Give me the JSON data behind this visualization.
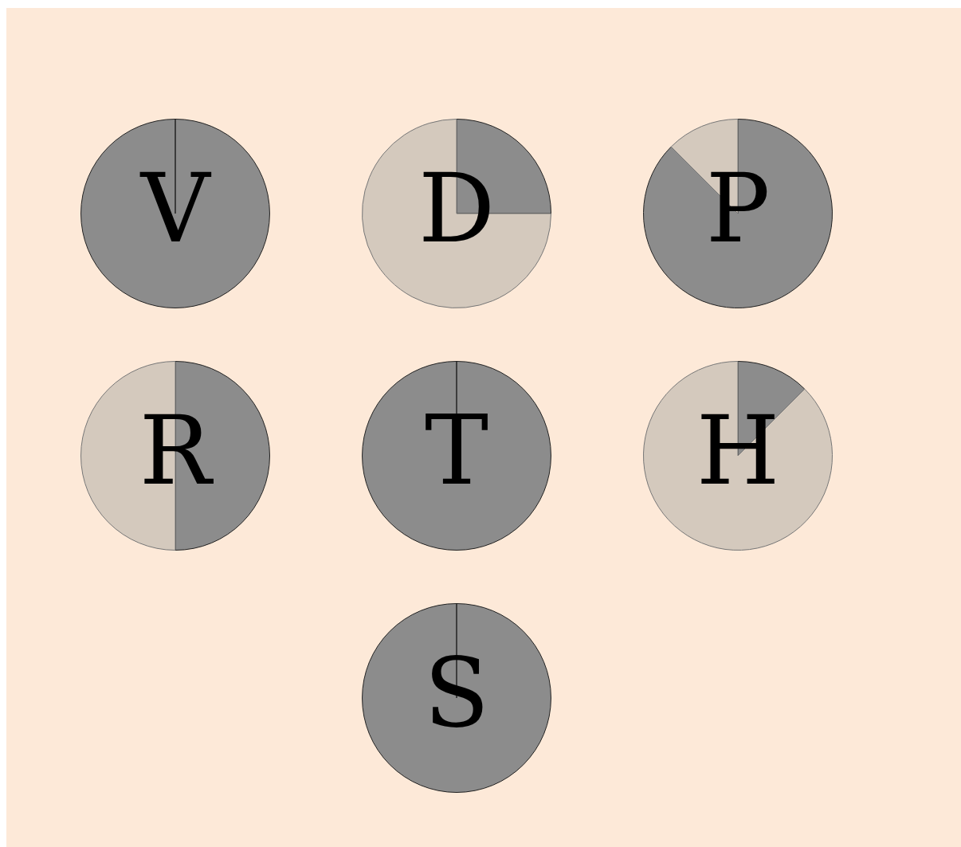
{
  "chart_data": [
    {
      "type": "pie",
      "title": "V",
      "categories": [
        null,
        null
      ],
      "values": [
        100,
        0
      ],
      "colors": [
        "#8c8c8c",
        "#d4c9bd"
      ]
    },
    {
      "type": "pie",
      "title": "D",
      "categories": [
        null,
        null
      ],
      "values": [
        25,
        75
      ],
      "colors": [
        "#8c8c8c",
        "#d4c9bd"
      ]
    },
    {
      "type": "pie",
      "title": "P",
      "categories": [
        null,
        null
      ],
      "values": [
        87.5,
        12.5
      ],
      "colors": [
        "#8c8c8c",
        "#d4c9bd"
      ]
    },
    {
      "type": "pie",
      "title": "R",
      "categories": [
        null,
        null
      ],
      "values": [
        50,
        50
      ],
      "colors": [
        "#8c8c8c",
        "#d4c9bd"
      ]
    },
    {
      "type": "pie",
      "title": "T",
      "categories": [
        null,
        null
      ],
      "values": [
        100,
        0
      ],
      "colors": [
        "#8c8c8c",
        "#d4c9bd"
      ]
    },
    {
      "type": "pie",
      "title": "H",
      "categories": [
        null,
        null
      ],
      "values": [
        12.5,
        87.5
      ],
      "colors": [
        "#8c8c8c",
        "#d4c9bd"
      ]
    },
    {
      "type": "pie",
      "title": "S",
      "categories": [
        null,
        null
      ],
      "values": [
        100,
        0
      ],
      "colors": [
        "#8c8c8c",
        "#d4c9bd"
      ]
    }
  ]
}
